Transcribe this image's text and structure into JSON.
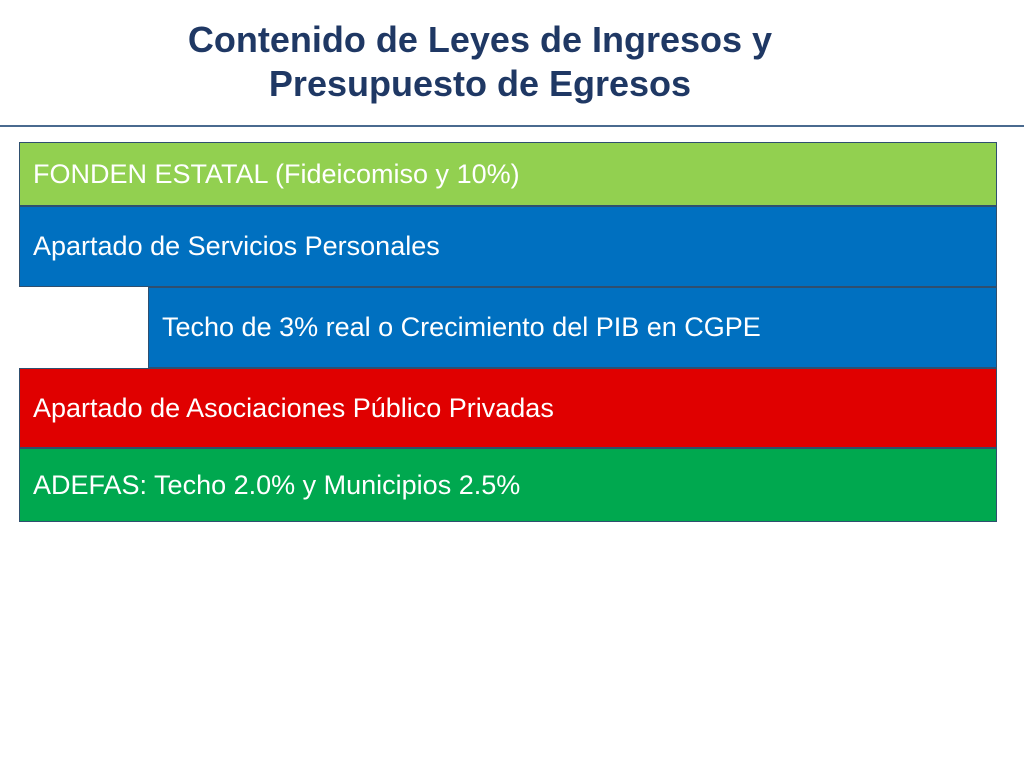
{
  "title": {
    "line1": "Contenido de Leyes de Ingresos y",
    "line2": "Presupuesto de Egresos"
  },
  "items": [
    {
      "label": "FONDEN ESTATAL (Fideicomiso y 10%)",
      "color": "#92d050"
    },
    {
      "label": "Apartado de Servicios Personales",
      "color": "#0070c0"
    },
    {
      "label": "Techo de 3% real o Crecimiento del PIB en CGPE",
      "color": "#0070c0"
    },
    {
      "label": "Apartado de Asociaciones Público Privadas",
      "color": "#e00000"
    },
    {
      "label": "ADEFAS: Techo 2.0% y Municipios 2.5%",
      "color": "#00a84f"
    }
  ]
}
